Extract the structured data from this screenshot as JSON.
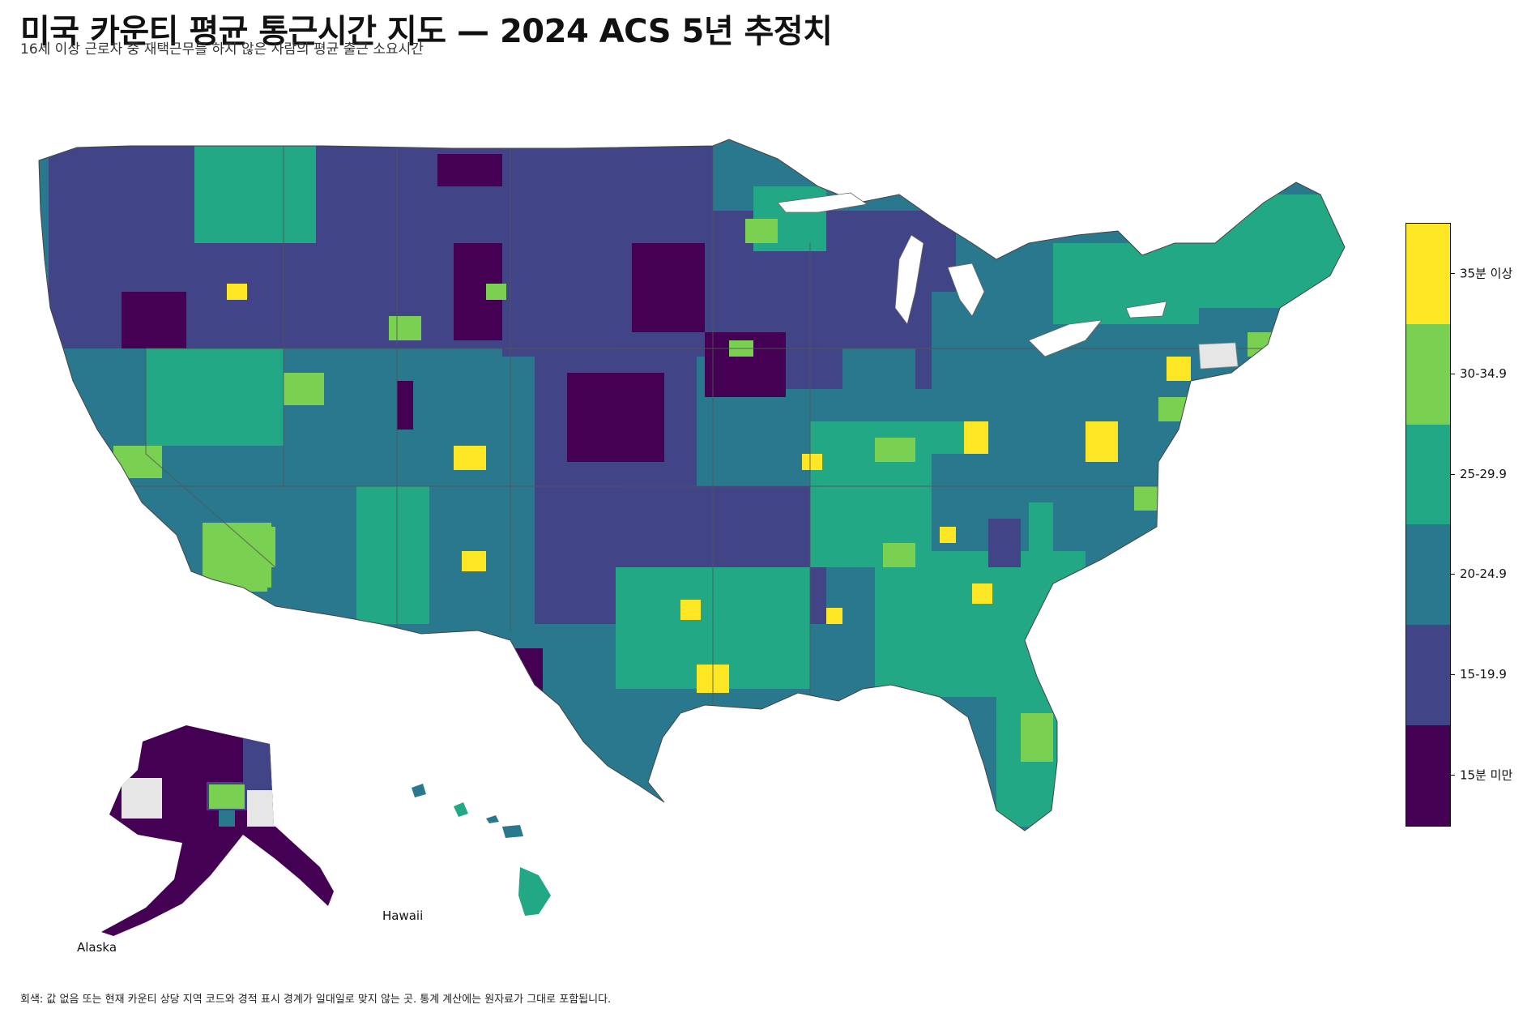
{
  "title": "미국 카운티 평균 통근시간 지도 — 2024 ACS 5년 추정치",
  "subtitle": "16세 이상 근로자 중 재택근무를 하지 않은 사람의 평균 출근 소요시간",
  "insets": {
    "alaska": "Alaska",
    "hawaii": "Hawaii"
  },
  "footnote": "회색: 값 없음 또는 현재 카운티 상당 지역 코드와 경적 표시 경계가 일대일로 맞지 않는 곳. 통계 계산에는 원자료가 그대로 포함됩니다.",
  "legend": {
    "bins": [
      {
        "label": "35분 이상",
        "color": "#fde725"
      },
      {
        "label": "30-34.9",
        "color": "#7ad151"
      },
      {
        "label": "25-29.9",
        "color": "#22a884"
      },
      {
        "label": "20-24.9",
        "color": "#2a788e"
      },
      {
        "label": "15-19.9",
        "color": "#414487"
      },
      {
        "label": "15분 미만",
        "color": "#440154"
      }
    ],
    "no_data_color": "#e6e6e6"
  }
}
